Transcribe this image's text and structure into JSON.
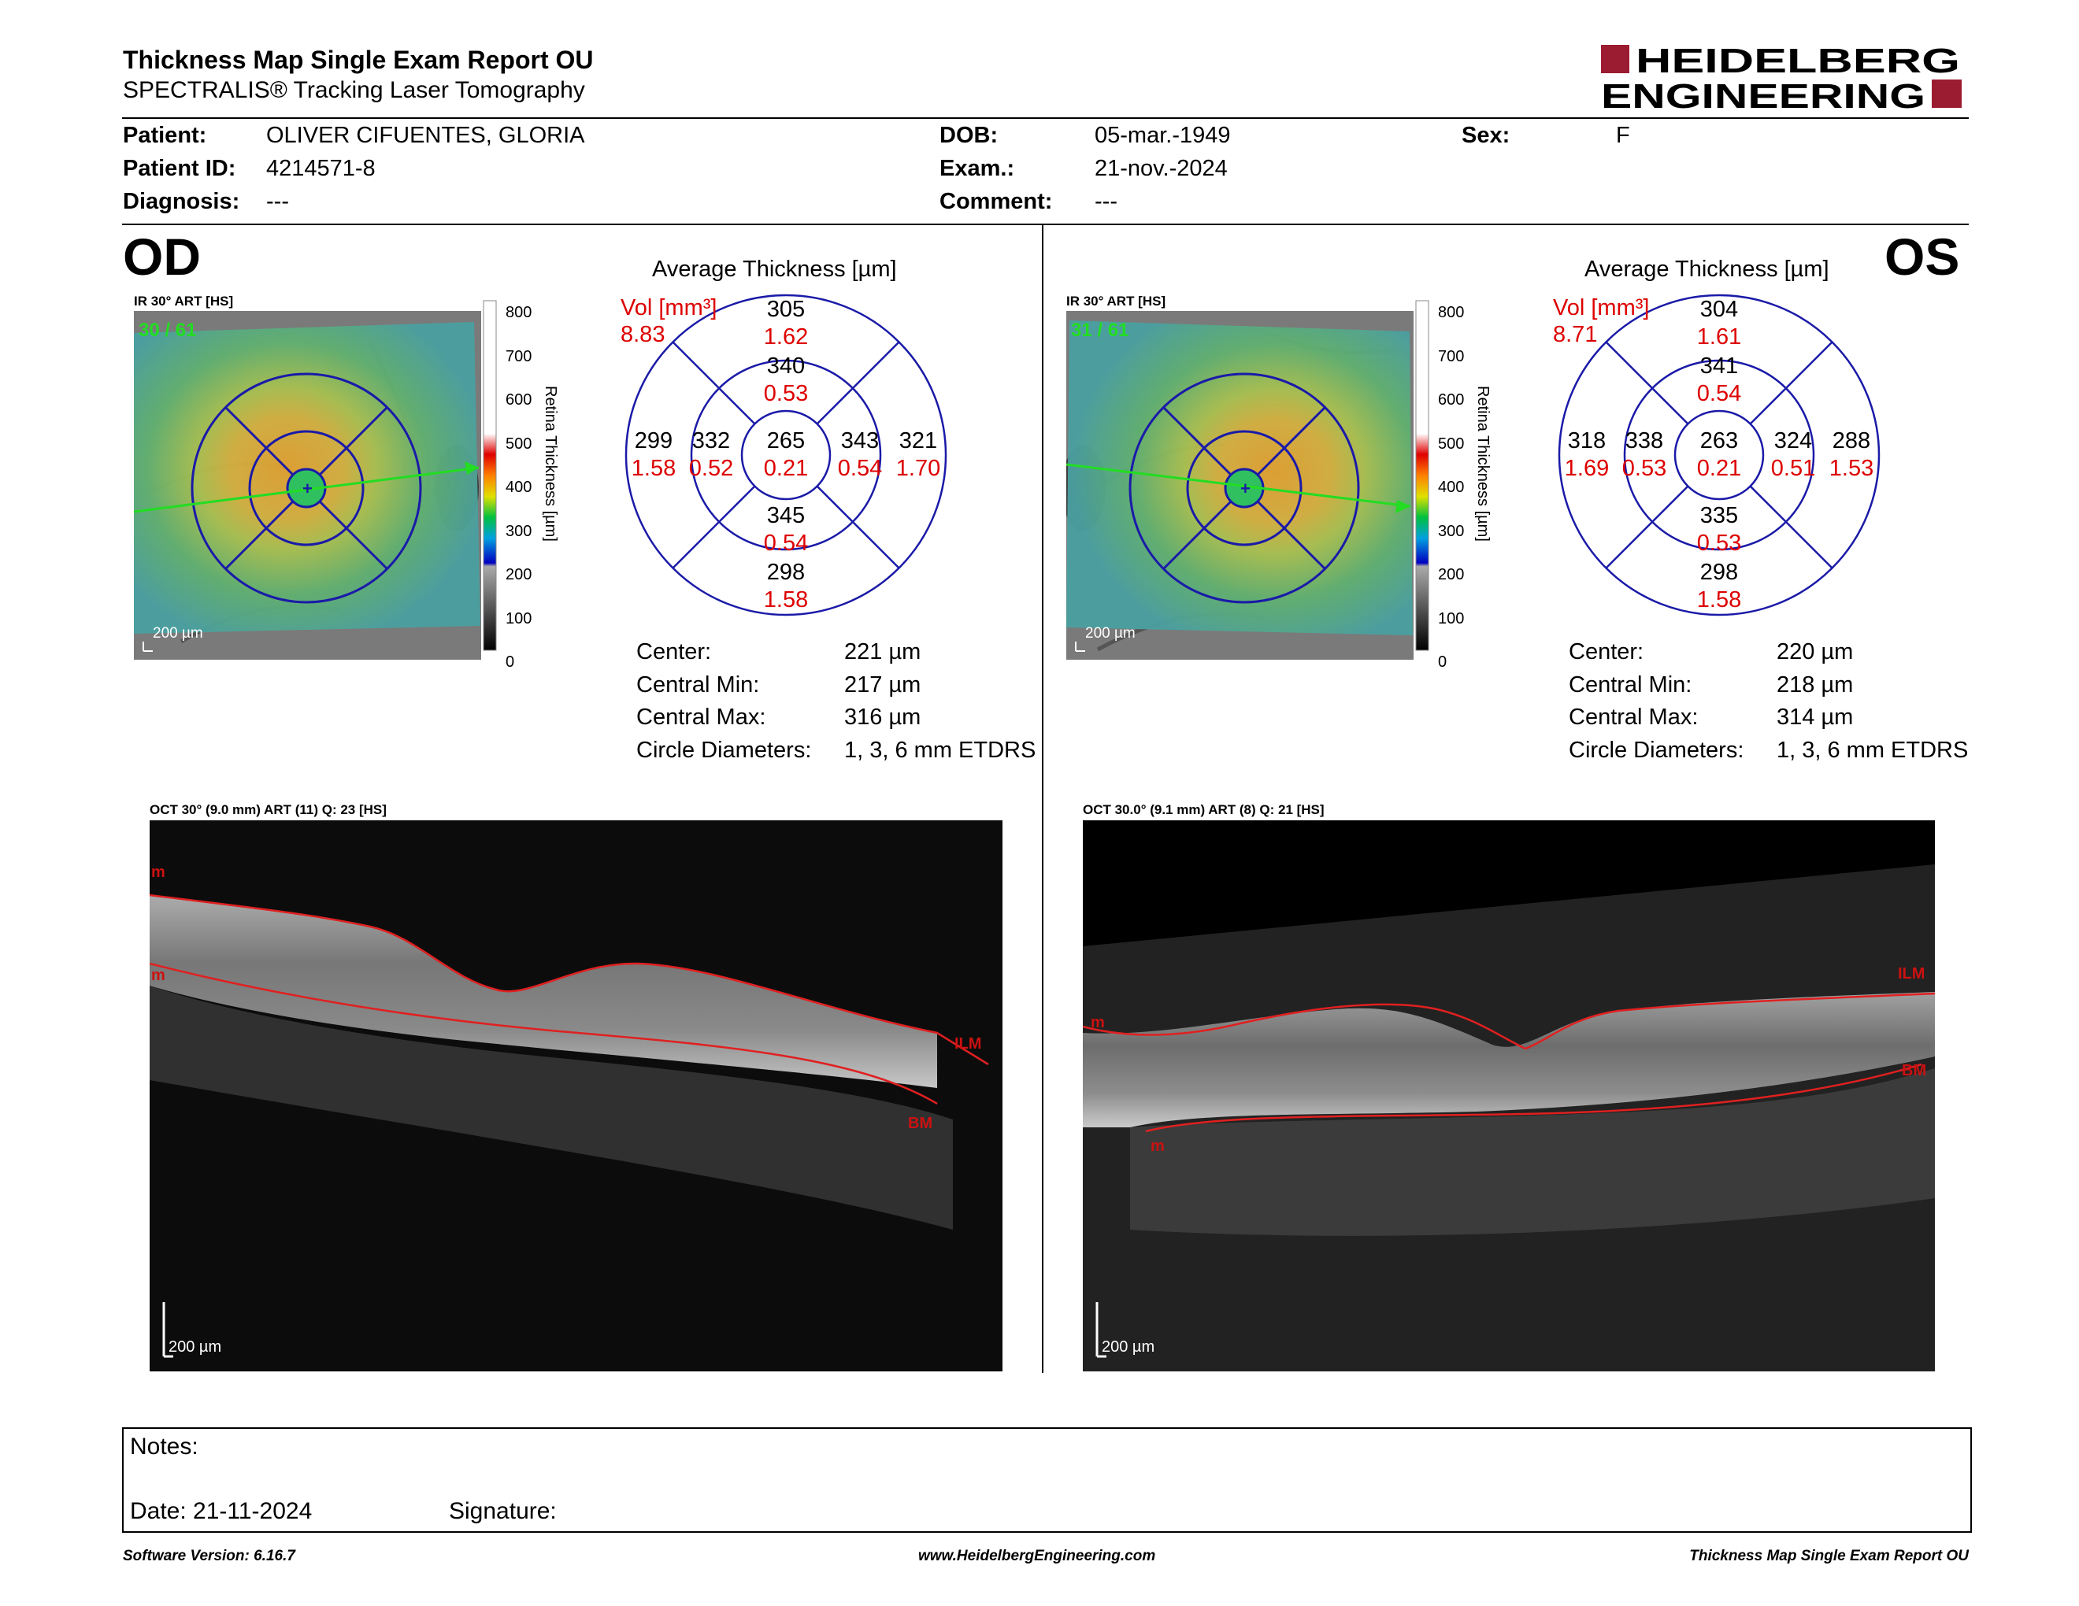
{
  "header": {
    "title": "Thickness Map Single Exam Report OU",
    "subtitle": "SPECTRALIS® Tracking Laser Tomography",
    "logo_line1": "HEIDELBERG",
    "logo_line2": "ENGINEERING",
    "logo_color": "#9b1b30"
  },
  "patient": {
    "patient_label": "Patient:",
    "patient_value": "OLIVER CIFUENTES, GLORIA",
    "id_label": "Patient ID:",
    "id_value": "4214571-8",
    "diag_label": "Diagnosis:",
    "diag_value": "---",
    "dob_label": "DOB:",
    "dob_value": "05-mar.-1949",
    "exam_label": "Exam.:",
    "exam_value": "21-nov.-2024",
    "comment_label": "Comment:",
    "comment_value": "---",
    "sex_label": "Sex:",
    "sex_value": "F"
  },
  "od": {
    "eye": "OD",
    "ir_caption": "IR 30° ART [HS]",
    "frame_count": "30 / 61",
    "scale_label": "200 µm",
    "colorbar_ticks": [
      "800",
      "700",
      "600",
      "500",
      "400",
      "300",
      "200",
      "100",
      "0"
    ],
    "colorbar_title": "Retina Thickness [µm]",
    "avg_title": "Average Thickness [µm]",
    "vol_label": "Vol [mm³]",
    "vol_value": "8.83",
    "etdrs": {
      "sup_outer": "305",
      "sup_outer_vol": "1.62",
      "sup_inner": "340",
      "sup_inner_vol": "0.53",
      "temp_outer": "299",
      "temp_outer_vol": "1.58",
      "temp_inner": "332",
      "temp_inner_vol": "0.52",
      "center": "265",
      "center_vol": "0.21",
      "nas_inner": "343",
      "nas_inner_vol": "0.54",
      "nas_outer": "321",
      "nas_outer_vol": "1.70",
      "inf_inner": "345",
      "inf_inner_vol": "0.54",
      "inf_outer": "298",
      "inf_outer_vol": "1.58"
    },
    "stats": {
      "center_label": "Center:",
      "center_value": "221 µm",
      "min_label": "Central Min:",
      "min_value": "217 µm",
      "max_label": "Central Max:",
      "max_value": "316 µm",
      "diam_label": "Circle Diameters:",
      "diam_value": "1, 3, 6 mm ETDRS"
    },
    "oct_caption": "OCT 30° (9.0 mm) ART (11) Q: 23 [HS]",
    "oct_scale": "200 µm",
    "oct_labels": {
      "m1": "m",
      "m2": "m",
      "ilm": "ILM",
      "bm": "BM"
    }
  },
  "os": {
    "eye": "OS",
    "ir_caption": "IR 30° ART [HS]",
    "frame_count": "31 / 61",
    "scale_label": "200 µm",
    "colorbar_ticks": [
      "800",
      "700",
      "600",
      "500",
      "400",
      "300",
      "200",
      "100",
      "0"
    ],
    "colorbar_title": "Retina Thickness [µm]",
    "avg_title": "Average Thickness [µm]",
    "vol_label": "Vol [mm³]",
    "vol_value": "8.71",
    "etdrs": {
      "sup_outer": "304",
      "sup_outer_vol": "1.61",
      "sup_inner": "341",
      "sup_inner_vol": "0.54",
      "temp_outer": "288",
      "temp_outer_vol": "1.53",
      "temp_inner": "324",
      "temp_inner_vol": "0.51",
      "center": "263",
      "center_vol": "0.21",
      "nas_inner": "338",
      "nas_inner_vol": "0.53",
      "nas_outer": "318",
      "nas_outer_vol": "1.69",
      "inf_inner": "335",
      "inf_inner_vol": "0.53",
      "inf_outer": "298",
      "inf_outer_vol": "1.58"
    },
    "stats": {
      "center_label": "Center:",
      "center_value": "220 µm",
      "min_label": "Central Min:",
      "min_value": "218 µm",
      "max_label": "Central Max:",
      "max_value": "314 µm",
      "diam_label": "Circle Diameters:",
      "diam_value": "1, 3, 6 mm ETDRS"
    },
    "oct_caption": "OCT 30.0° (9.1 mm) ART (8) Q: 21 [HS]",
    "oct_scale": "200 µm",
    "oct_labels": {
      "m1": "m",
      "m2": "m",
      "ilm": "ILM",
      "bm": "BM"
    }
  },
  "notes": {
    "notes_label": "Notes:",
    "date_label": "Date: 21-11-2024",
    "signature_label": "Signature:"
  },
  "footer": {
    "left": "Software Version: 6.16.7",
    "center": "www.HeidelbergEngineering.com",
    "right": "Thickness Map Single Exam Report OU"
  }
}
